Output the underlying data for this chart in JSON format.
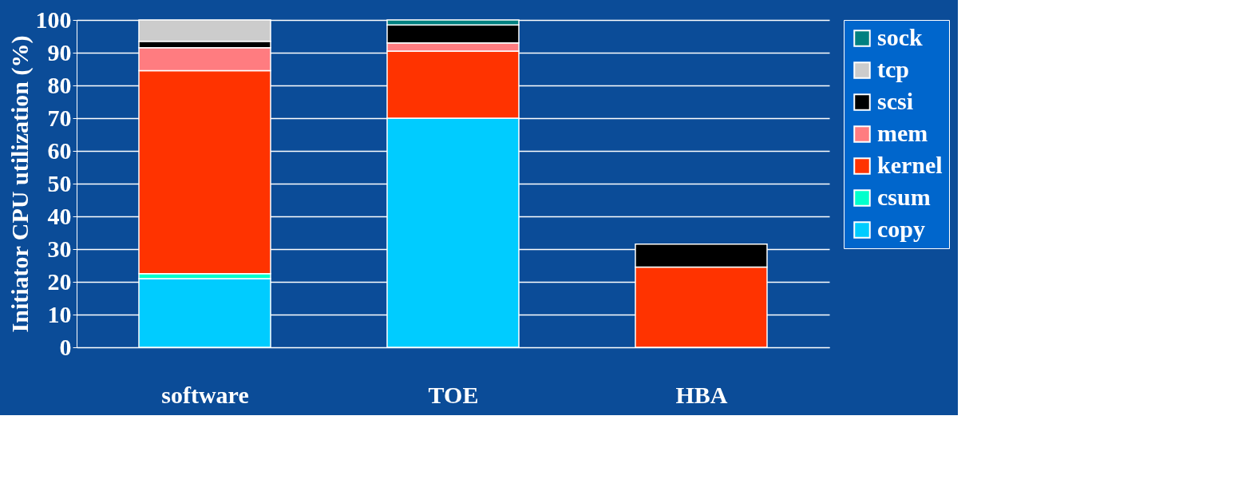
{
  "chart_data": {
    "type": "bar",
    "stacked": true,
    "ylabel": "Initiator CPU utilization (%)",
    "categories": [
      "software",
      "TOE",
      "HBA"
    ],
    "series": [
      {
        "name": "copy",
        "color": "#00ccff",
        "values": [
          21,
          70,
          null
        ]
      },
      {
        "name": "csum",
        "color": "#00ffcc",
        "values": [
          1.5,
          null,
          null
        ]
      },
      {
        "name": "kernel",
        "color": "#ff3300",
        "values": [
          62,
          20.5,
          24.5
        ]
      },
      {
        "name": "mem",
        "color": "#ff7c80",
        "values": [
          7,
          2.5,
          null
        ]
      },
      {
        "name": "scsi",
        "color": "#000000",
        "values": [
          2,
          5.5,
          7
        ]
      },
      {
        "name": "tcp",
        "color": "#cccccc",
        "values": [
          6.5,
          null,
          null
        ]
      },
      {
        "name": "sock",
        "color": "#008080",
        "values": [
          null,
          1.5,
          null
        ]
      }
    ],
    "ylim": [
      0,
      100
    ],
    "yticks": [
      0,
      10,
      20,
      30,
      40,
      50,
      60,
      70,
      80,
      90,
      100
    ],
    "grid": "y",
    "legend": "right"
  }
}
